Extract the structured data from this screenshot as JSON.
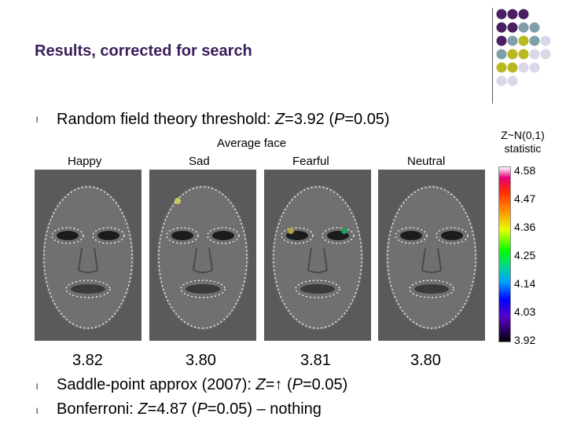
{
  "title": "Results, corrected for search",
  "bullets": [
    {
      "marker": "l",
      "text_html": "Random field theory threshold: <i>Z</i>=3.92 (<i>P</i>=0.05)"
    },
    {
      "marker": "l",
      "text_html": "Saddle-point approx (2007): <i>Z</i>=↑ (<i>P</i>=0.05)"
    },
    {
      "marker": "l",
      "text_html": "Bonferroni: <i>Z</i>=4.87 (<i>P</i>=0.05) – nothing"
    }
  ],
  "avg_label": "Average face",
  "faces": [
    {
      "label": "Happy",
      "threshold": "3.82"
    },
    {
      "label": "Sad",
      "threshold": "3.80"
    },
    {
      "label": "Fearful",
      "threshold": "3.81"
    },
    {
      "label": "Neutral",
      "threshold": "3.80"
    }
  ],
  "colorbar": {
    "title_line1": "Z~N(0,1)",
    "title_line2": "statistic",
    "ticks": [
      "4.58",
      "4.47",
      "4.36",
      "4.25",
      "4.14",
      "4.03",
      "3.92"
    ]
  },
  "decor_colors": [
    "#4a2060",
    "#7fa0a8",
    "#b8b820",
    "#d8d8e8"
  ]
}
